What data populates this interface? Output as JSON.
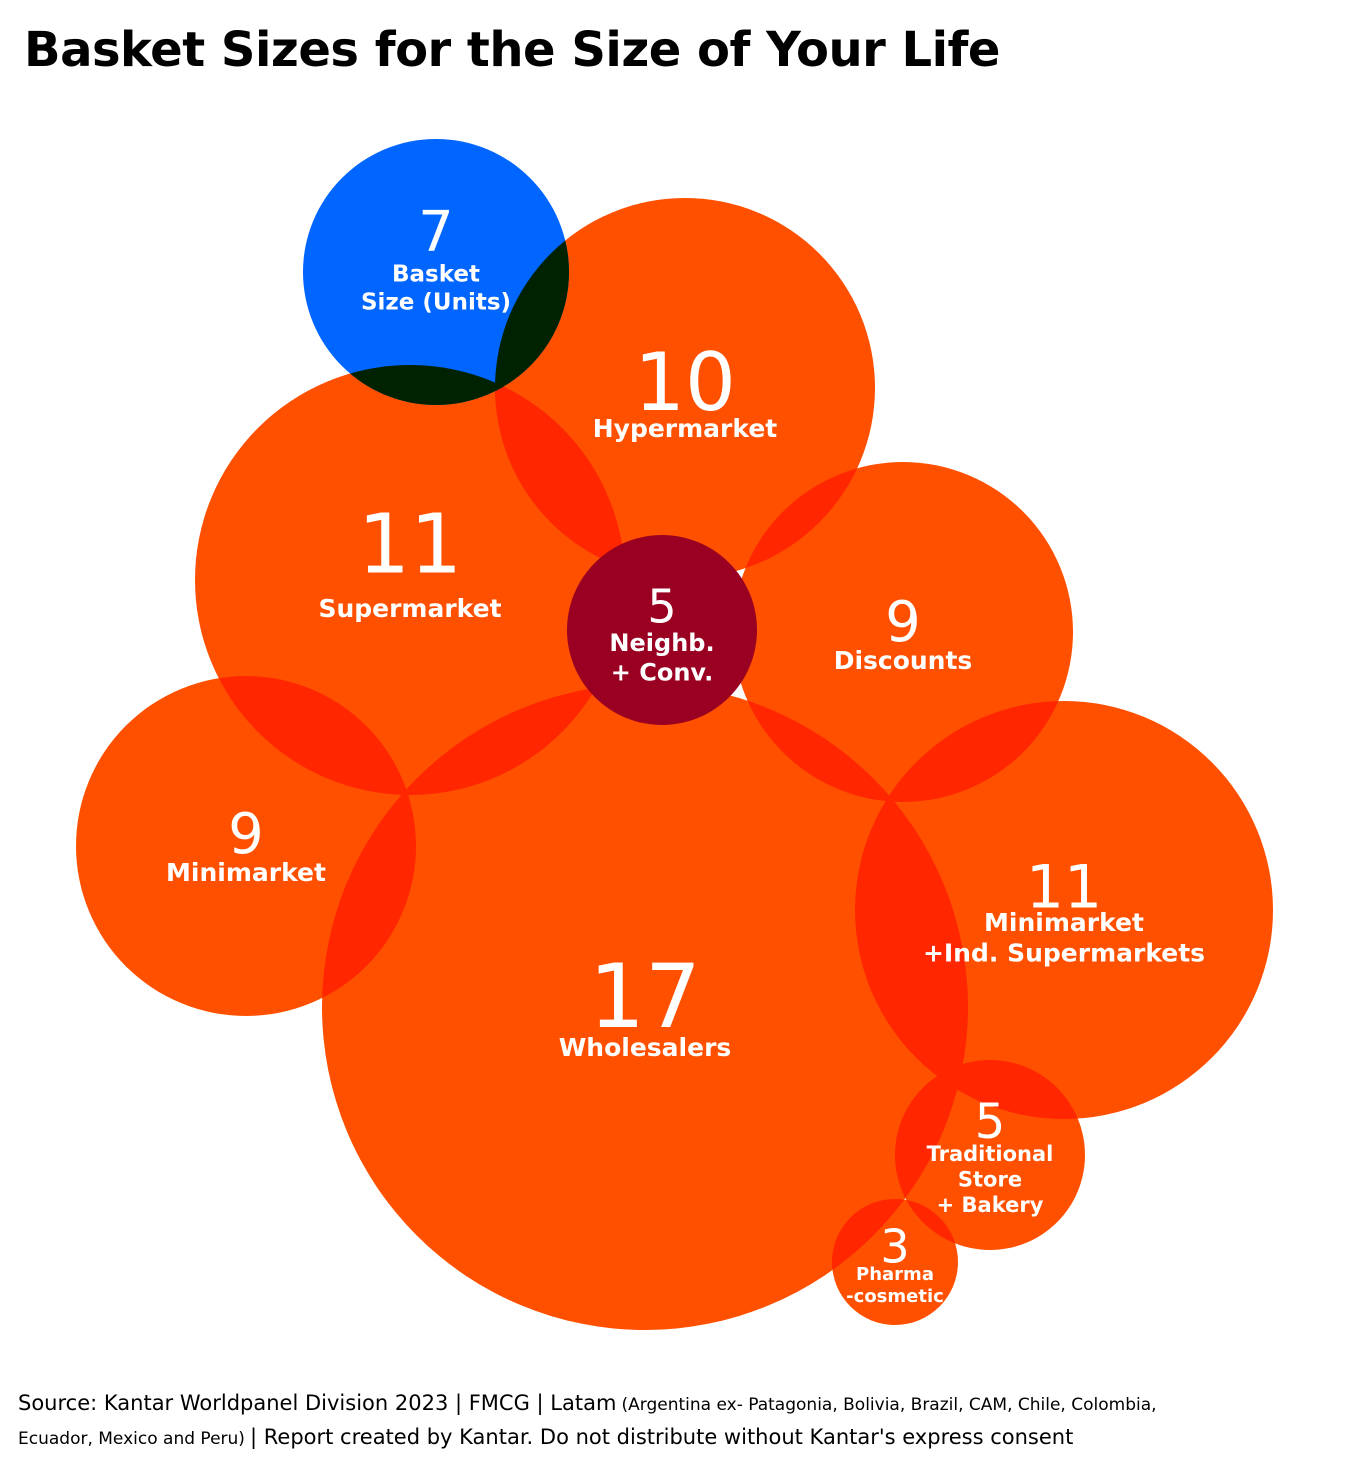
{
  "title": "Basket Sizes for the Size of Your Life",
  "colors": {
    "orange": "#ff5000",
    "overlap": "#ff2600",
    "blue": "#0066ff",
    "blue_overlap": "#002200",
    "center": "#9a0022"
  },
  "chart_data": {
    "type": "bubble",
    "title": "Basket Sizes for the Size of Your Life",
    "value_label": "Basket Size (Units)",
    "legend": {
      "value": "7",
      "lines": [
        "Basket",
        "Size (Units)"
      ]
    },
    "bubbles": [
      {
        "key": "supermarket",
        "value": 11,
        "value_text": "11",
        "lines": [
          "Supermarket"
        ]
      },
      {
        "key": "hypermarket",
        "value": 10,
        "value_text": "10",
        "lines": [
          "Hypermarket"
        ]
      },
      {
        "key": "discounts",
        "value": 9,
        "value_text": "9",
        "lines": [
          "Discounts"
        ]
      },
      {
        "key": "minimarket",
        "value": 9,
        "value_text": "9",
        "lines": [
          "Minimarket"
        ]
      },
      {
        "key": "wholesalers",
        "value": 17,
        "value_text": "17",
        "lines": [
          "Wholesalers"
        ]
      },
      {
        "key": "minimarket-ind-supermarkets",
        "value": 11,
        "value_text": "11",
        "lines": [
          "Minimarket",
          "+Ind. Supermarkets"
        ]
      },
      {
        "key": "traditional-store-bakery",
        "value": 5,
        "value_text": "5",
        "lines": [
          "Traditional",
          "Store",
          "+ Bakery"
        ]
      },
      {
        "key": "pharma-cosmetic",
        "value": 3,
        "value_text": "3",
        "lines": [
          "Pharma",
          "-cosmetic"
        ]
      },
      {
        "key": "neighb-conv",
        "value": 5,
        "value_text": "5",
        "lines": [
          "Neighb.",
          "+ Conv."
        ]
      }
    ]
  },
  "footer": {
    "line1_main": "Source: Kantar Worldpanel Division 2023 | FMCG | Latam",
    "line1_small": "(Argentina ex- Patagonia, Bolivia, Brazil, CAM, Chile, Colombia,",
    "line2_small": "Ecuador, Mexico and Peru)",
    "line2_main": "| Report created by Kantar. Do not distribute without Kantar's express consent"
  }
}
